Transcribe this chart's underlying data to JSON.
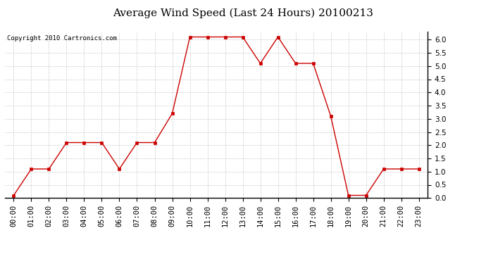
{
  "title": "Average Wind Speed (Last 24 Hours) 20100213",
  "copyright": "Copyright 2010 Cartronics.com",
  "hours": [
    "00:00",
    "01:00",
    "02:00",
    "03:00",
    "04:00",
    "05:00",
    "06:00",
    "07:00",
    "08:00",
    "09:00",
    "10:00",
    "11:00",
    "12:00",
    "13:00",
    "14:00",
    "15:00",
    "16:00",
    "17:00",
    "18:00",
    "19:00",
    "20:00",
    "21:00",
    "22:00",
    "23:00"
  ],
  "values": [
    0.1,
    1.1,
    1.1,
    2.1,
    2.1,
    2.1,
    1.1,
    2.1,
    2.1,
    3.2,
    6.1,
    6.1,
    6.1,
    6.1,
    5.1,
    6.1,
    5.1,
    5.1,
    3.1,
    0.1,
    0.1,
    1.1,
    1.1,
    1.1
  ],
  "line_color": "#cc0000",
  "marker": "s",
  "marker_size": 2.5,
  "ylim": [
    0.0,
    6.3
  ],
  "yticks": [
    0.0,
    0.5,
    1.0,
    1.5,
    2.0,
    2.5,
    3.0,
    3.5,
    4.0,
    4.5,
    5.0,
    5.5,
    6.0
  ],
  "background_color": "#ffffff",
  "grid_color": "#cccccc",
  "title_fontsize": 11,
  "copyright_fontsize": 6.5,
  "tick_fontsize": 7.5
}
